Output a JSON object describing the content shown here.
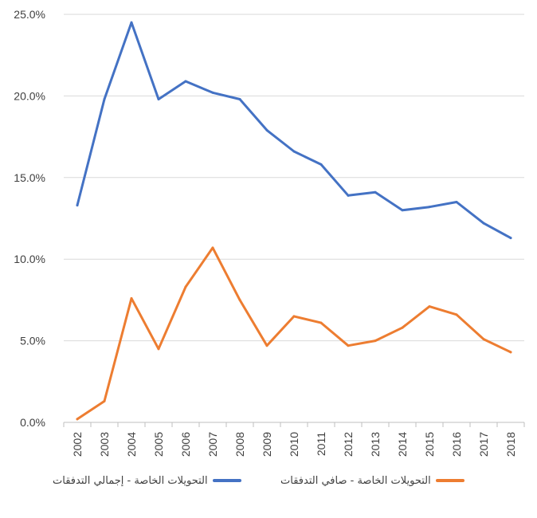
{
  "chart_data": {
    "type": "line",
    "categories": [
      "2002",
      "2003",
      "2004",
      "2005",
      "2006",
      "2007",
      "2008",
      "2009",
      "2010",
      "2011",
      "2012",
      "2013",
      "2014",
      "2015",
      "2016",
      "2017",
      "2018"
    ],
    "series": [
      {
        "name": "التحويلات الخاصة - إجمالي التدفقات",
        "color": "#4472C4",
        "values": [
          13.3,
          19.8,
          24.5,
          19.8,
          20.9,
          20.2,
          19.8,
          17.9,
          16.6,
          15.8,
          13.9,
          14.1,
          13.0,
          13.2,
          13.5,
          12.2,
          11.3
        ]
      },
      {
        "name": "التحويلات الخاصة - صافي التدفقات",
        "color": "#ED7D31",
        "values": [
          0.2,
          1.3,
          7.6,
          4.5,
          8.3,
          10.7,
          7.5,
          4.7,
          6.5,
          6.1,
          4.7,
          5.0,
          5.8,
          7.1,
          6.6,
          5.1,
          4.3
        ]
      }
    ],
    "ylim": [
      0,
      25
    ],
    "yticks": [
      0,
      5,
      10,
      15,
      20,
      25
    ],
    "ytick_labels": [
      "0.0%",
      "5.0%",
      "10.0%",
      "15.0%",
      "20.0%",
      "25.0%"
    ],
    "grid": true,
    "legend_position": "bottom"
  }
}
